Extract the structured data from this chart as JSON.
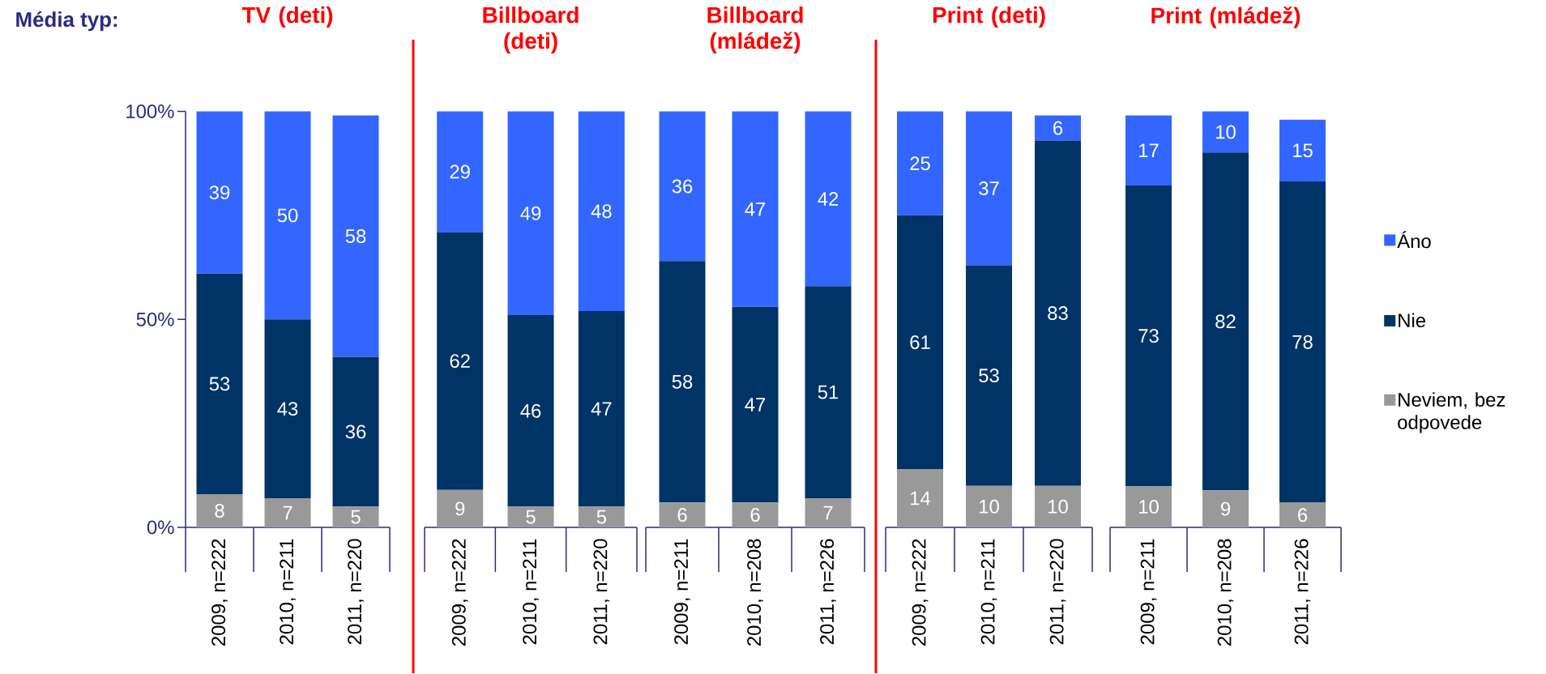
{
  "chart_data": [
    {
      "type": "bar",
      "title": "TV (deti)",
      "annotations": [
        "Média typ:"
      ],
      "categories": [
        "2009, n=222",
        "2010, n=211",
        "2011, n=220"
      ],
      "stacked": true,
      "data_labels": true,
      "ylim": [
        0,
        100
      ],
      "yticks": [
        {
          "value": 0,
          "label": "0%"
        },
        {
          "value": 50,
          "label": "50%"
        },
        {
          "value": 100,
          "label": "100%"
        }
      ],
      "series": [
        {
          "color": "#999999",
          "values": [
            8,
            7,
            5
          ]
        },
        {
          "color": "#003366",
          "values": [
            53,
            43,
            36
          ]
        },
        {
          "color": "#3366ff",
          "values": [
            39,
            50,
            58
          ]
        }
      ]
    },
    {
      "type": "bar",
      "title": "Billboard (deti)",
      "categories": [
        "2009, n=222",
        "2010, n=211",
        "2011, n=220"
      ],
      "stacked": true,
      "data_labels": true,
      "ylim": [
        0,
        100
      ],
      "tick_labels": "x",
      "series": [
        {
          "color": "#999999",
          "values": [
            9,
            5,
            5
          ]
        },
        {
          "color": "#003366",
          "values": [
            62,
            46,
            47
          ]
        },
        {
          "color": "#3366ff",
          "values": [
            29,
            49,
            48
          ]
        }
      ]
    },
    {
      "type": "bar",
      "title": "Billboard (mládež)",
      "categories": [
        "2009, n=211",
        "2010, n=208",
        "2011, n=226"
      ],
      "stacked": true,
      "data_labels": true,
      "ylim": [
        0,
        100
      ],
      "tick_labels": "x",
      "series": [
        {
          "color": "#999999",
          "values": [
            6,
            6,
            7
          ]
        },
        {
          "color": "#003366",
          "values": [
            58,
            47,
            51
          ]
        },
        {
          "color": "#3366ff",
          "values": [
            36,
            47,
            42
          ]
        }
      ]
    },
    {
      "type": "bar",
      "title": "Print (deti)",
      "categories": [
        "2009, n=222",
        "2010, n=211",
        "2011, n=220"
      ],
      "stacked": true,
      "data_labels": true,
      "ylim": [
        0,
        100
      ],
      "tick_labels": "x",
      "series": [
        {
          "color": "#999999",
          "values": [
            14,
            10,
            10
          ]
        },
        {
          "color": "#003366",
          "values": [
            61,
            53,
            83
          ]
        },
        {
          "color": "#3366ff",
          "values": [
            25,
            37,
            6
          ]
        }
      ]
    },
    {
      "type": "bar",
      "title": "Print (mládež)",
      "categories": [
        "2009, n=211",
        "2010, n=208",
        "2011, n=226"
      ],
      "stacked": true,
      "data_labels": true,
      "ylim": [
        0,
        101
      ],
      "tick_labels": "x",
      "legend": "right",
      "series": [
        {
          "name": "Neviem, bez odpovede",
          "color": "#999999",
          "values": [
            10,
            9,
            6
          ]
        },
        {
          "name": "Nie",
          "color": "#003366",
          "values": [
            73,
            82,
            78
          ]
        },
        {
          "name": "Áno",
          "color": "#3366ff",
          "values": [
            17,
            10,
            15
          ]
        }
      ]
    }
  ]
}
